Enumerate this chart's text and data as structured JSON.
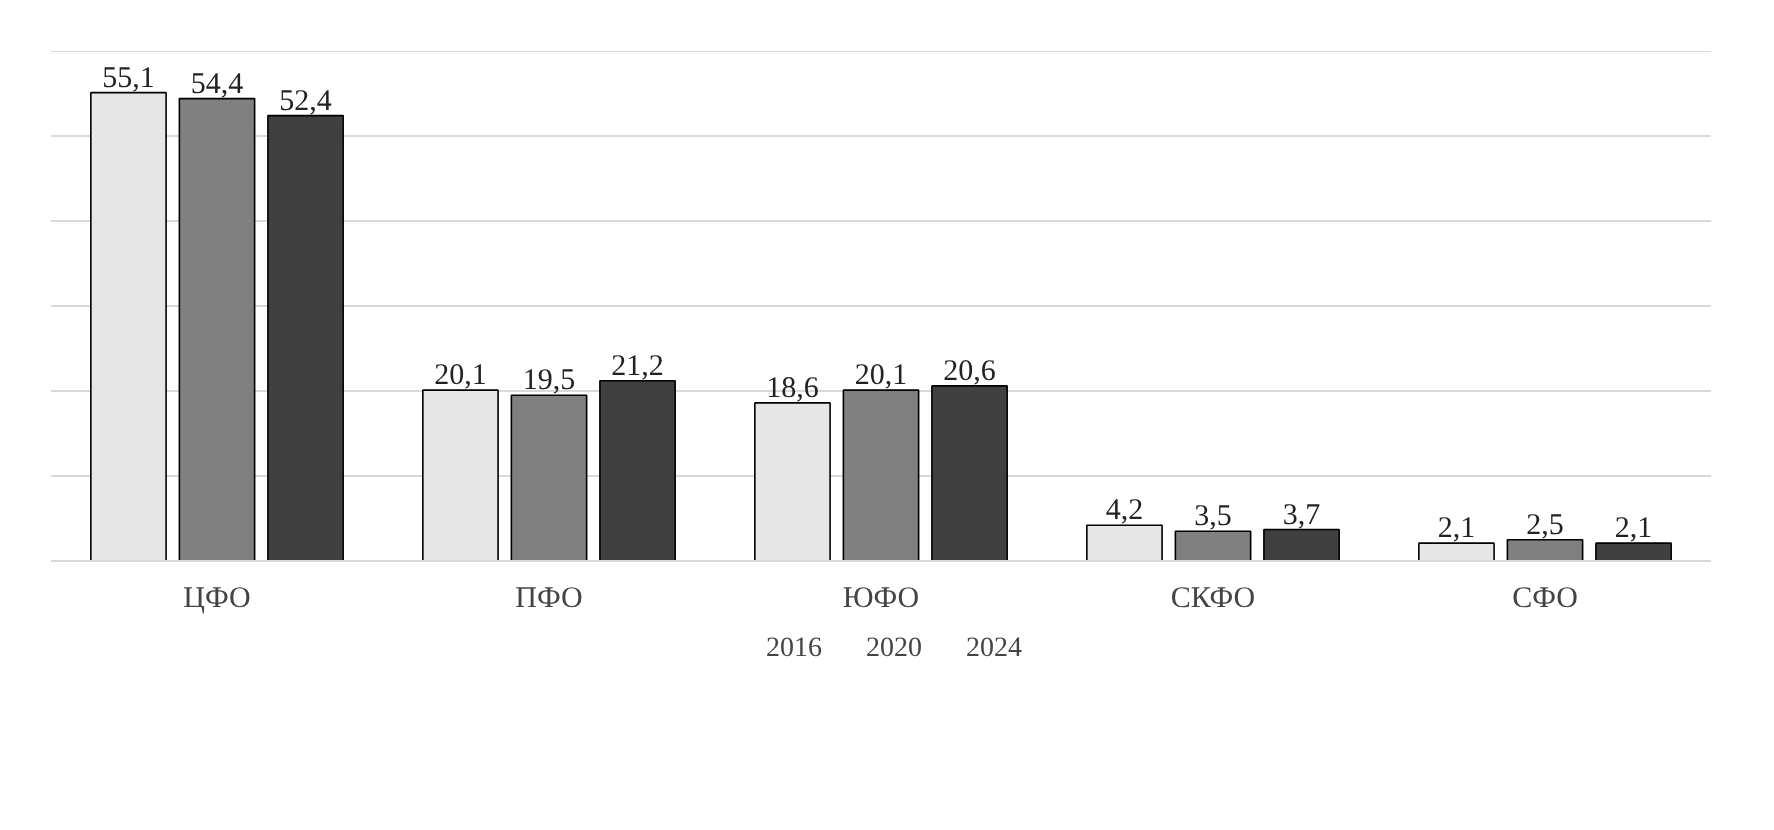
{
  "chart_data": {
    "type": "bar",
    "categories": [
      "ЦФО",
      "ПФО",
      "ЮФО",
      "СКФО",
      "СФО"
    ],
    "series": [
      {
        "name": "2016",
        "color": "#e6e6e6",
        "values": [
          55.1,
          20.1,
          18.6,
          4.2,
          2.1
        ],
        "value_labels": [
          "55,1",
          "20,1",
          "18,6",
          "4,2",
          "2,1"
        ]
      },
      {
        "name": "2020",
        "color": "#808080",
        "values": [
          54.4,
          19.5,
          20.1,
          3.5,
          2.5
        ],
        "value_labels": [
          "54,4",
          "19,5",
          "20,1",
          "3,5",
          "2,5"
        ]
      },
      {
        "name": "2024",
        "color": "#404040",
        "values": [
          52.4,
          21.2,
          20.6,
          3.7,
          2.1
        ],
        "value_labels": [
          "52,4",
          "21,2",
          "20,6",
          "3,7",
          "2,1"
        ]
      }
    ],
    "ylim": [
      0,
      60
    ],
    "yticks": [
      {
        "value": 0,
        "label": null
      },
      {
        "value": 10,
        "label": null
      },
      {
        "value": 20,
        "label": null
      },
      {
        "value": 30,
        "label": null
      },
      {
        "value": 40,
        "label": null
      },
      {
        "value": 50,
        "label": null
      },
      {
        "value": 60,
        "label": null
      }
    ],
    "tick_labels": "x",
    "grid": "y",
    "legend": "bottom"
  }
}
